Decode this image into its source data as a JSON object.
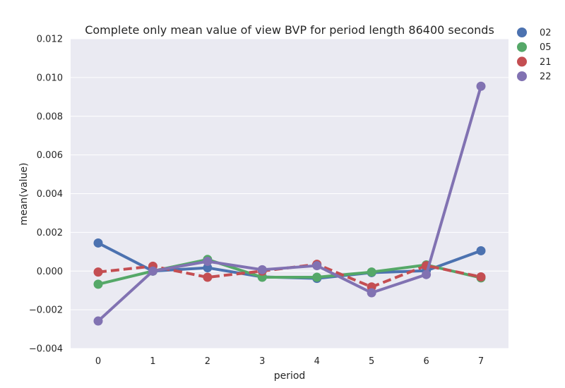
{
  "chart_data": {
    "type": "line",
    "title": "Complete only mean value of view BVP for period length 86400 seconds",
    "xlabel": "period",
    "ylabel": "mean(value)",
    "categories": [
      "0",
      "1",
      "2",
      "3",
      "4",
      "5",
      "6",
      "7"
    ],
    "ylim": [
      -0.004,
      0.012
    ],
    "yticks": [
      -0.004,
      -0.002,
      0.0,
      0.002,
      0.004,
      0.006,
      0.008,
      0.01,
      0.012
    ],
    "ytick_labels": [
      "−0.004",
      "−0.002",
      "0.000",
      "0.002",
      "0.004",
      "0.006",
      "0.008",
      "0.010",
      "0.012"
    ],
    "grid": true,
    "legend_position": "outside-top-right",
    "series": [
      {
        "name": "02",
        "color": "#4c72b0",
        "dashed": false,
        "values": [
          0.00145,
          0.0,
          0.00017,
          -0.0003,
          -0.00038,
          -8e-05,
          2e-05,
          0.00105
        ]
      },
      {
        "name": "05",
        "color": "#55a868",
        "dashed": false,
        "values": [
          -0.00068,
          0.0,
          0.0006,
          -0.00032,
          -0.00032,
          -5e-05,
          0.00032,
          -0.00035
        ]
      },
      {
        "name": "21",
        "color": "#c44e52",
        "dashed": true,
        "values": [
          -5e-05,
          0.00025,
          -0.00032,
          0.0,
          0.00035,
          -0.00082,
          0.00028,
          -0.0003
        ]
      },
      {
        "name": "22",
        "color": "#8172b2",
        "dashed": false,
        "values": [
          -0.00258,
          0.0,
          0.0005,
          7e-05,
          0.00028,
          -0.00112,
          -0.00018,
          0.00955
        ]
      }
    ]
  }
}
